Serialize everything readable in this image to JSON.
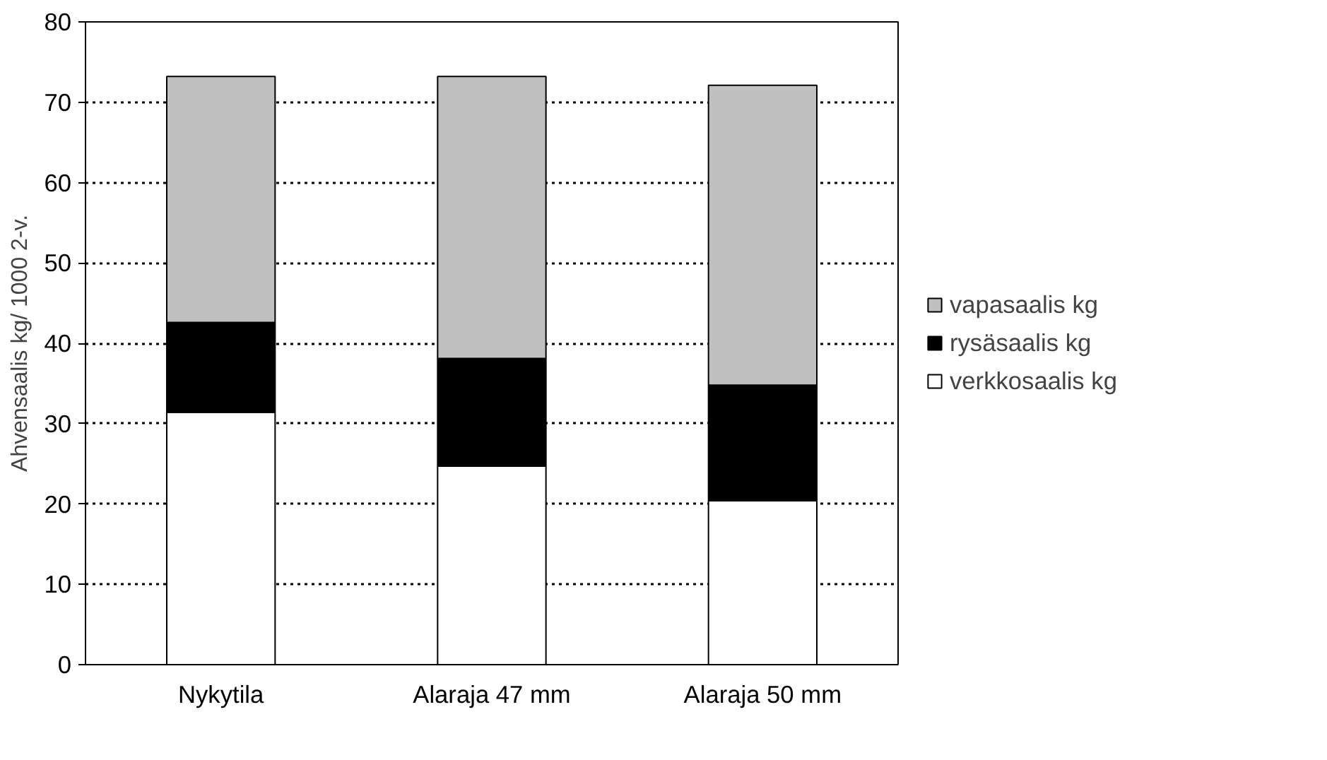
{
  "chart_data": {
    "type": "bar",
    "stacked": true,
    "ylabel": "Ahvensaalis kg/ 1000 2-v.",
    "categories": [
      "Nykytila",
      "Alaraja 47 mm",
      "Alaraja 50 mm"
    ],
    "series": [
      {
        "name": "verkkosaalis kg",
        "color": "#ffffff",
        "values": [
          31.4,
          24.7,
          20.4
        ]
      },
      {
        "name": "rysäsaalis kg",
        "color": "#000000",
        "values": [
          11.2,
          13.4,
          14.4
        ]
      },
      {
        "name": "vapasaalis kg",
        "color": "#c0c0c0",
        "values": [
          30.6,
          35.1,
          37.3
        ]
      }
    ],
    "ylim": [
      0,
      80
    ],
    "yticks": [
      0,
      10,
      20,
      30,
      40,
      50,
      60,
      70,
      80
    ],
    "grid": "y",
    "legend": "right"
  }
}
